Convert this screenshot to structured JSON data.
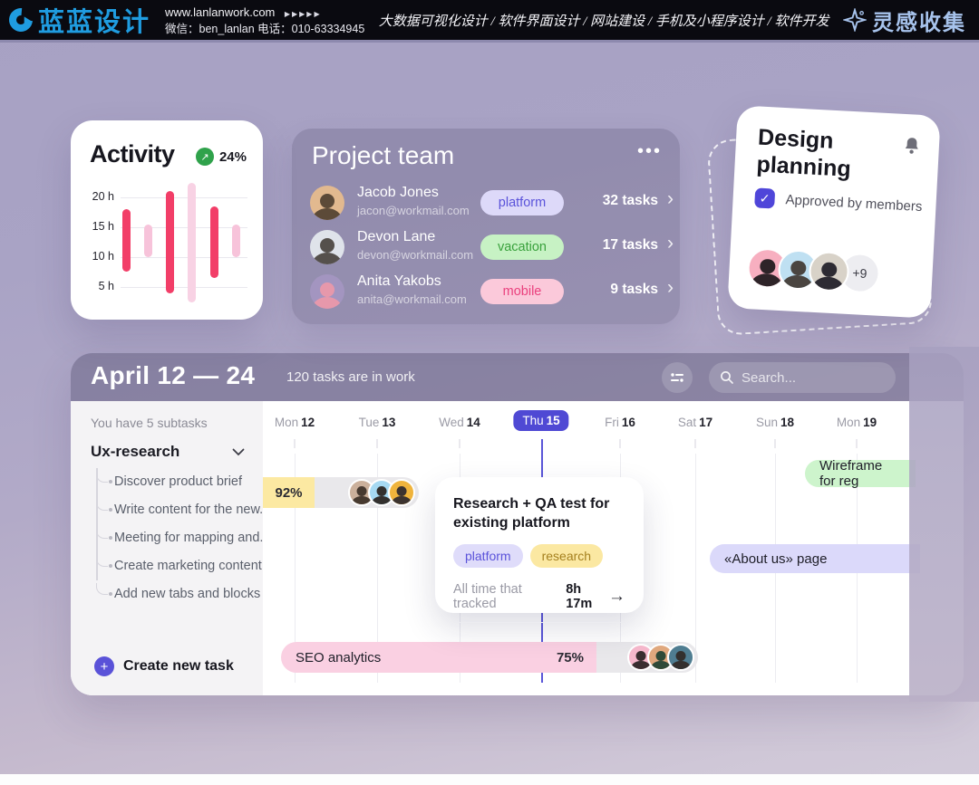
{
  "topbar": {
    "brand": "蓝蓝设计",
    "url": "www.lanlanwork.com",
    "url_arrows": "▶▶▶▶▶",
    "contact": "微信：ben_lanlan   电话：010-63334945",
    "services": "大数据可视化设计 / 软件界面设计 / 网站建设 / 手机及小程序设计 / 软件开发",
    "collect": "灵感收集"
  },
  "activity": {
    "title": "Activity",
    "badge_value": "24%",
    "y_labels": [
      "20 h",
      "15 h",
      "10 h",
      "5 h"
    ]
  },
  "chart_data": [
    {
      "type": "bar",
      "title": "Activity",
      "badge": "24%",
      "ylabel": "hours",
      "ylim": [
        0,
        25
      ],
      "yticks": [
        5,
        10,
        15,
        20
      ],
      "grid": true,
      "bars": [
        {
          "from": 7.5,
          "to": 18,
          "color": "#f23e68"
        },
        {
          "from": 10,
          "to": 15.5,
          "color": "#f7c3da"
        },
        {
          "from": 4,
          "to": 21,
          "color": "#f23e68"
        },
        {
          "from": 2.5,
          "to": 22.5,
          "color": "#f8d2e4"
        },
        {
          "from": 6.5,
          "to": 18.5,
          "color": "#f23e68"
        },
        {
          "from": 10,
          "to": 15.5,
          "color": "#f7c3da"
        }
      ]
    },
    {
      "type": "gantt",
      "title": "April 12 — 24",
      "days": [
        "Mon 12",
        "Tue 13",
        "Wed 14",
        "Thu 15",
        "Fri 16",
        "Sat 17",
        "Sun 18",
        "Mon 19"
      ],
      "today": "Thu 15",
      "tasks": [
        {
          "label": "92% progress bar",
          "start_day": "before Mon 12",
          "end_day": "Tue 13",
          "percent": 92,
          "assignees": 3
        },
        {
          "label": "Wireframe for reg",
          "start_day": "Sun 18",
          "end_day": "beyond Mon 19"
        },
        {
          "label": "«About us» page",
          "start_day": "Sat 17",
          "end_day": "beyond Mon 19"
        },
        {
          "label": "SEO analytics",
          "start_day": "before Mon 12",
          "end_day": "Fri 16",
          "percent": 75,
          "assignees": 3
        }
      ]
    }
  ],
  "team": {
    "title": "Project team",
    "menu": "•••",
    "members": [
      {
        "name": "Jacob Jones",
        "email": "jacon@workmail.com",
        "tag": "platform",
        "tasks": "32 tasks",
        "chevron": "›"
      },
      {
        "name": "Devon Lane",
        "email": "devon@workmail.com",
        "tag": "vacation",
        "tasks": "17 tasks",
        "chevron": "›"
      },
      {
        "name": "Anita Yakobs",
        "email": "anita@workmail.com",
        "tag": "mobile",
        "tasks": "9 tasks",
        "chevron": "›"
      }
    ]
  },
  "planning": {
    "title": "Design planning",
    "checkbox_checked": "✓",
    "checkbox_label": "Approved by members",
    "more_count": "+9"
  },
  "gantt": {
    "title": "April 12 — 24",
    "subtitle": "120 tasks are in work",
    "search_placeholder": "Search...",
    "sidebar": {
      "note": "You have 5 subtasks",
      "group": "Ux-research",
      "items": [
        "Discover product brief",
        "Write content for the new...",
        "Meeting for mapping and...",
        "Create marketing content",
        "Add new tabs and blocks"
      ],
      "create_label": "Create new task",
      "plus": "+"
    },
    "days": [
      {
        "dow": "Mon",
        "num": "12"
      },
      {
        "dow": "Tue",
        "num": "13"
      },
      {
        "dow": "Wed",
        "num": "14"
      },
      {
        "dow": "Thu",
        "num": "15"
      },
      {
        "dow": "Fri",
        "num": "16"
      },
      {
        "dow": "Sat",
        "num": "17"
      },
      {
        "dow": "Sun",
        "num": "18"
      },
      {
        "dow": "Mon",
        "num": "19"
      }
    ],
    "row1_percent": "92%",
    "wireframe_label": "Wireframe for reg",
    "about_label": "«About us» page",
    "seo": {
      "label": "SEO analytics",
      "percent": "75%"
    },
    "tooltip": {
      "title": "Research + QA test for existing platform",
      "tags": [
        "platform",
        "research"
      ],
      "tracked_label": "All time that tracked",
      "tracked_value": "8h 17m",
      "arrow": "→"
    }
  },
  "colors": {
    "accent_indigo": "#4f49d4",
    "pink_dark": "#f23e68",
    "pink_light": "#f7c3da",
    "green_badge": "#2fa24b",
    "yellow_bar": "#fce9a2",
    "seo_pink": "#fad0e2",
    "wireframe_green": "#cdf4cc",
    "about_lavender": "#dbd9fa",
    "brand_blue": "#1f9ce0"
  }
}
